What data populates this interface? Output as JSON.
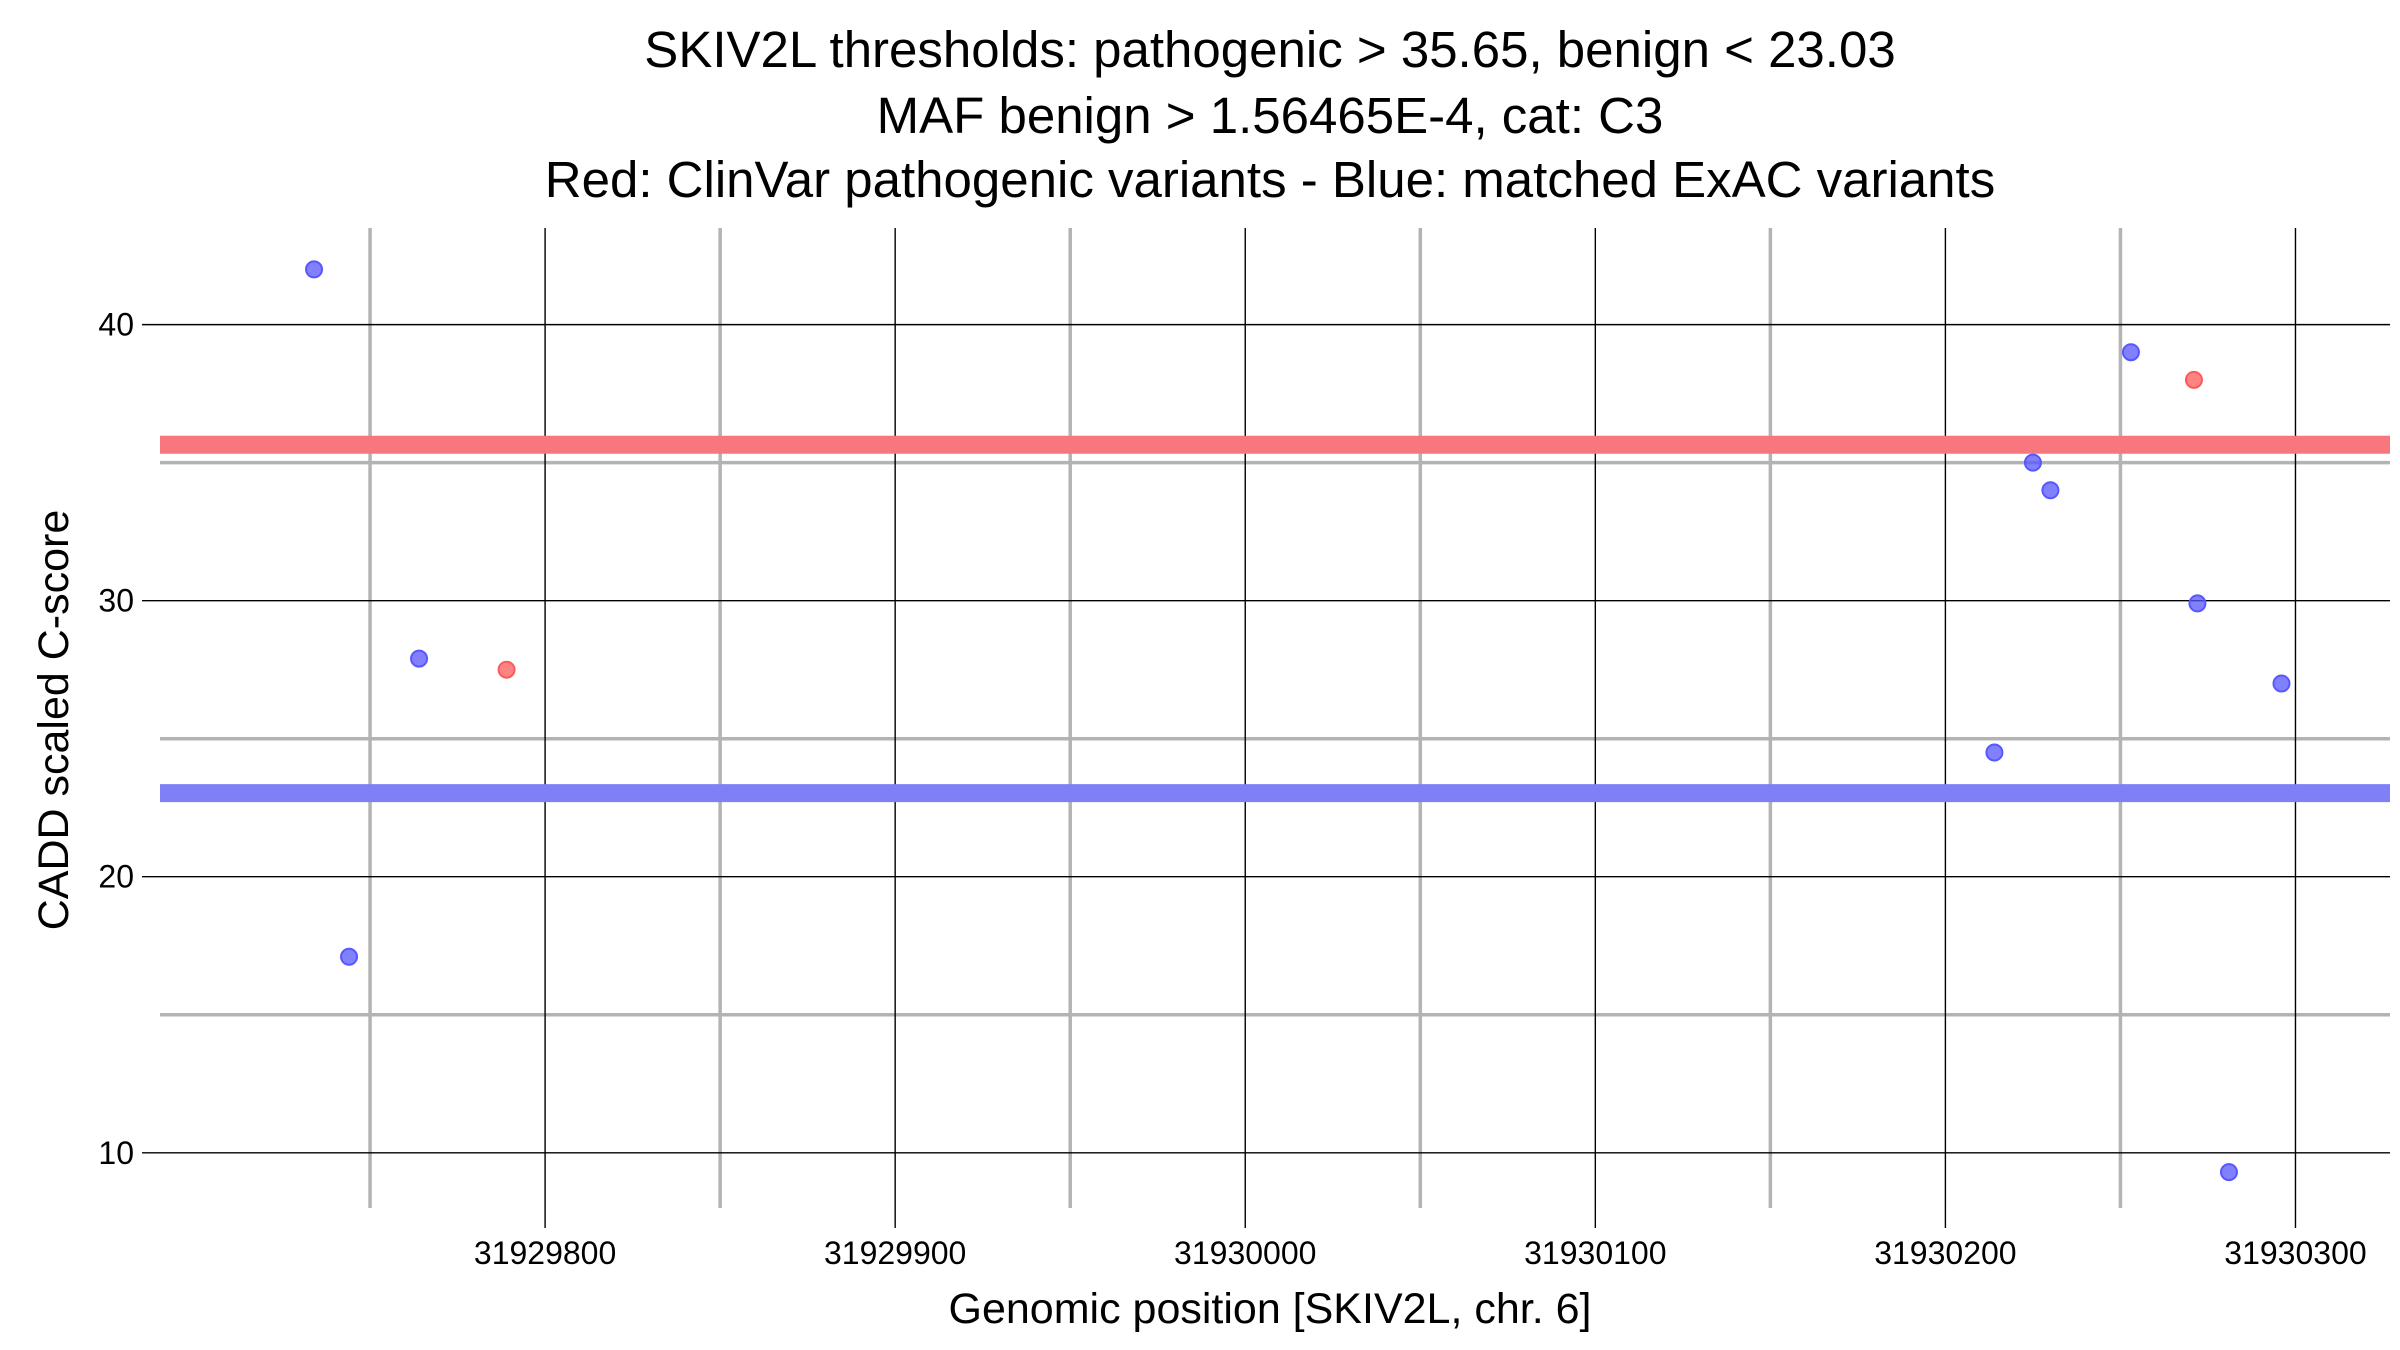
{
  "chart_data": {
    "type": "scatter",
    "title": [
      "SKIV2L thresholds: pathogenic > 35.65, benign < 23.03",
      "MAF benign > 1.56465E-4, cat: C3",
      "Red: ClinVar pathogenic variants - Blue: matched ExAC variants"
    ],
    "xlabel": "Genomic position [SKIV2L, chr. 6]",
    "ylabel": "CADD scaled C-score",
    "xlim": [
      31929690,
      31930327
    ],
    "ylim": [
      8,
      43.5
    ],
    "x_ticks": [
      31929800,
      31929900,
      31930000,
      31930100,
      31930200,
      31930300
    ],
    "x_tick_labels": [
      "31929800",
      "31929900",
      "31930000",
      "31930100",
      "31930200",
      "31930300"
    ],
    "y_ticks": [
      10,
      20,
      30,
      40
    ],
    "y_tick_labels": [
      "10",
      "20",
      "30",
      "40"
    ],
    "grid": true,
    "thresholds": [
      {
        "axis": "y",
        "value": 35.65,
        "color": "#f8767d"
      },
      {
        "axis": "y",
        "value": 23.03,
        "color": "#7f7ff7"
      }
    ],
    "series": [
      {
        "color": "#ff5a5a",
        "points": [
          {
            "x": 31929789,
            "y": 27.5
          },
          {
            "x": 31930271,
            "y": 38.0
          }
        ]
      },
      {
        "color": "#5757ff",
        "points": [
          {
            "x": 31929734,
            "y": 42.0
          },
          {
            "x": 31929744,
            "y": 17.1
          },
          {
            "x": 31929764,
            "y": 27.9
          },
          {
            "x": 31930214,
            "y": 24.5
          },
          {
            "x": 31930225,
            "y": 35.0
          },
          {
            "x": 31930230,
            "y": 34.0
          },
          {
            "x": 31930253,
            "y": 39.0
          },
          {
            "x": 31930272,
            "y": 29.9
          },
          {
            "x": 31930281,
            "y": 9.3
          },
          {
            "x": 31930296,
            "y": 27.0
          }
        ]
      }
    ]
  }
}
